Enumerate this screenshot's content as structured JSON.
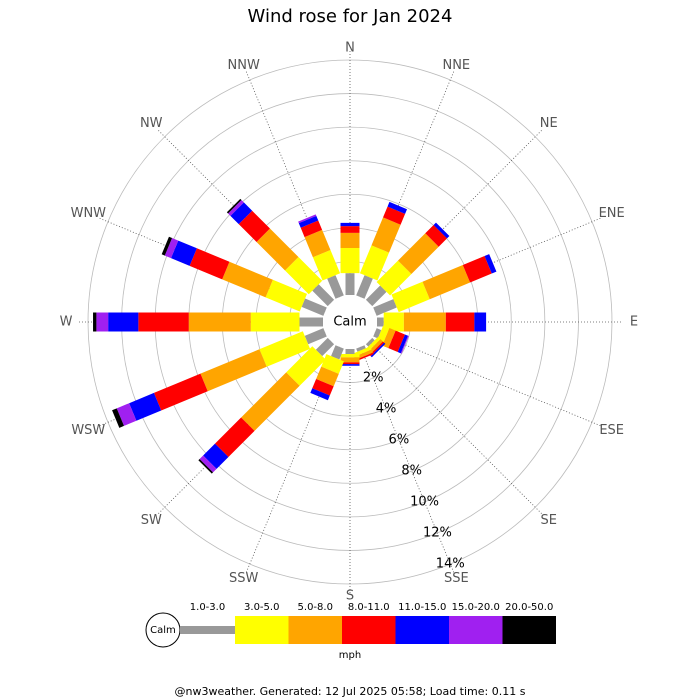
{
  "chart_data": {
    "type": "windrose",
    "title": "Wind rose for Jan 2024",
    "categories": [
      "N",
      "NNE",
      "NE",
      "ENE",
      "E",
      "ESE",
      "SE",
      "SSE",
      "S",
      "SSW",
      "SW",
      "WSW",
      "W",
      "WNW",
      "NW",
      "NNW"
    ],
    "series": [
      {
        "name": "1.0-3.0",
        "color": "#999999",
        "values": [
          1.3,
          1.3,
          1.2,
          1.3,
          0.4,
          0.3,
          0.2,
          0.2,
          0.3,
          0.7,
          1.0,
          1.2,
          1.4,
          1.4,
          1.3,
          1.3
        ]
      },
      {
        "name": "3.0-5.0",
        "color": "#ffff00",
        "values": [
          1.5,
          1.8,
          1.8,
          2.0,
          1.2,
          0.4,
          0.2,
          0.2,
          0.2,
          0.8,
          2.2,
          2.8,
          2.9,
          2.2,
          2.0,
          1.5
        ]
      },
      {
        "name": "5.0-8.0",
        "color": "#ffa500",
        "values": [
          0.9,
          1.8,
          2.3,
          2.6,
          2.5,
          0.4,
          0.2,
          0.2,
          0.3,
          0.8,
          3.8,
          3.8,
          3.7,
          2.8,
          2.4,
          1.3
        ]
      },
      {
        "name": "8.0-11.0",
        "color": "#ff0000",
        "values": [
          0.4,
          0.7,
          0.7,
          1.4,
          1.7,
          0.6,
          0.1,
          0.1,
          0.1,
          0.6,
          2.2,
          3.0,
          3.0,
          2.1,
          1.5,
          0.6
        ]
      },
      {
        "name": "11.0-15.0",
        "color": "#0000ff",
        "values": [
          0.2,
          0.3,
          0.2,
          0.3,
          0.7,
          0.2,
          0.1,
          0,
          0.1,
          0.3,
          1.0,
          1.6,
          1.8,
          1.2,
          0.7,
          0.3
        ]
      },
      {
        "name": "15.0-20.0",
        "color": "#a020f0",
        "values": [
          0,
          0,
          0,
          0,
          0,
          0.05,
          0,
          0,
          0,
          0,
          0.3,
          0.8,
          0.7,
          0.4,
          0.2,
          0.1
        ]
      },
      {
        "name": "20.0-50.0",
        "color": "#000000",
        "values": [
          0,
          0,
          0,
          0,
          0,
          0,
          0,
          0,
          0,
          0,
          0.1,
          0.3,
          0.2,
          0.2,
          0.1,
          0
        ]
      }
    ],
    "rlim": [
      0,
      14
    ],
    "rticks": [
      {
        "value": 2,
        "label": "2%"
      },
      {
        "value": 4,
        "label": "4%"
      },
      {
        "value": 6,
        "label": "6%"
      },
      {
        "value": 8,
        "label": "8%"
      },
      {
        "value": 10,
        "label": "10%"
      },
      {
        "value": 12,
        "label": "12%"
      },
      {
        "value": 14,
        "label": "14%"
      }
    ],
    "calm_label": "Calm",
    "unit": "mph",
    "footer": "@nw3weather. Generated: 12 Jul 2025 05:58; Load time: 0.11 s"
  }
}
